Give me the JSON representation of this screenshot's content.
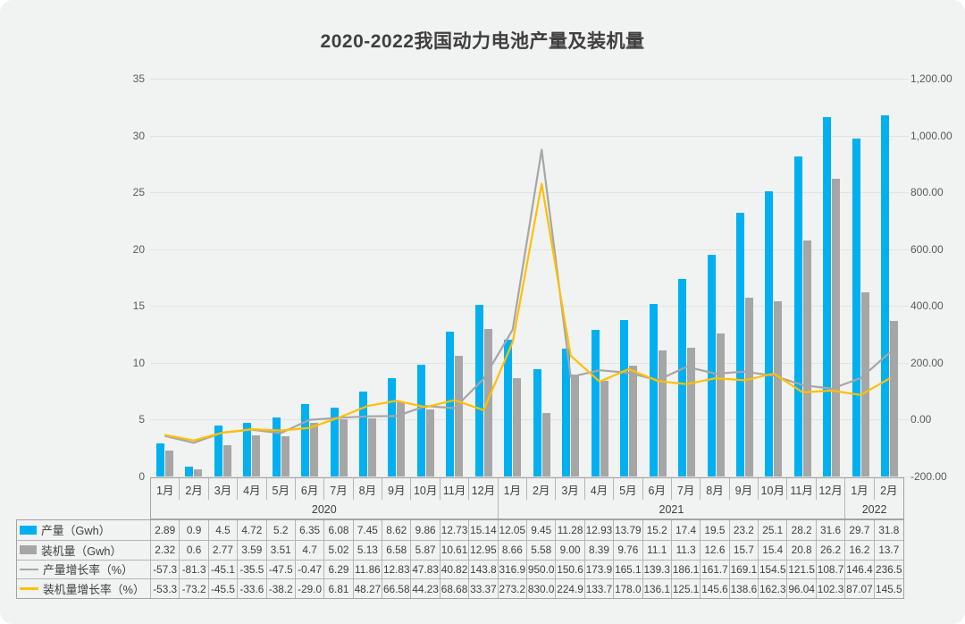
{
  "title": "2020-2022我国动力电池产量及装机量",
  "colors": {
    "production_bar": "#00b0f0",
    "install_bar": "#a6a6a6",
    "production_growth_line": "#a6a6a6",
    "install_growth_line": "#ffc000",
    "background": "#f1f2f2",
    "gridline": "#e2e2e2"
  },
  "chart_data": {
    "type": "combo",
    "title": "2020-2022我国动力电池产量及装机量",
    "grid": true,
    "legend_position": "table-left",
    "categories": [
      "1月",
      "2月",
      "3月",
      "4月",
      "5月",
      "6月",
      "7月",
      "8月",
      "9月",
      "10月",
      "11月",
      "12月",
      "1月",
      "2月",
      "3月",
      "4月",
      "5月",
      "6月",
      "7月",
      "8月",
      "9月",
      "10月",
      "11月",
      "12月",
      "1月",
      "2月"
    ],
    "year_groups": [
      {
        "label": "2020",
        "span": 12
      },
      {
        "label": "2021",
        "span": 12
      },
      {
        "label": "2022",
        "span": 2
      }
    ],
    "left_axis": {
      "min": 0,
      "max": 35,
      "step": 5,
      "ticks": [
        "0",
        "5",
        "10",
        "15",
        "20",
        "25",
        "30",
        "35"
      ]
    },
    "right_axis": {
      "min": -200,
      "max": 1200,
      "step": 200,
      "ticks": [
        "-200.00",
        "0.00",
        "200.00",
        "400.00",
        "600.00",
        "800.00",
        "1,000.00",
        "1,200.00"
      ]
    },
    "series": [
      {
        "name": "产量（Gwh）",
        "type": "bar",
        "axis": "left",
        "color": "#00b0f0",
        "values": [
          "2.89",
          "0.9",
          "4.5",
          "4.72",
          "5.2",
          "6.35",
          "6.08",
          "7.45",
          "8.62",
          "9.86",
          "12.73",
          "15.14",
          "12.05",
          "9.45",
          "11.28",
          "12.93",
          "13.79",
          "15.2",
          "17.4",
          "19.5",
          "23.2",
          "25.1",
          "28.2",
          "31.6",
          "29.7",
          "31.8"
        ]
      },
      {
        "name": "装机量（Gwh）",
        "type": "bar",
        "axis": "left",
        "color": "#a6a6a6",
        "values": [
          "2.32",
          "0.6",
          "2.77",
          "3.59",
          "3.51",
          "4.7",
          "5.02",
          "5.13",
          "6.58",
          "5.87",
          "10.61",
          "12.95",
          "8.66",
          "5.58",
          "9.00",
          "8.39",
          "9.76",
          "11.1",
          "11.3",
          "12.6",
          "15.7",
          "15.4",
          "20.8",
          "26.2",
          "16.2",
          "13.7"
        ]
      },
      {
        "name": "产量增长率（%）",
        "type": "line",
        "axis": "right",
        "color": "#a6a6a6",
        "values": [
          "-57.3",
          "-81.3",
          "-45.1",
          "-35.5",
          "-47.5",
          "-0.47",
          "6.29",
          "11.86",
          "12.83",
          "47.83",
          "40.82",
          "143.8",
          "316.9",
          "950.0",
          "150.6",
          "173.9",
          "165.1",
          "139.3",
          "186.1",
          "161.7",
          "169.1",
          "154.5",
          "121.5",
          "108.7",
          "146.4",
          "236.5"
        ]
      },
      {
        "name": "装机量增长率（%）",
        "type": "line",
        "axis": "right",
        "color": "#ffc000",
        "values": [
          "-53.3",
          "-73.2",
          "-45.5",
          "-33.6",
          "-38.2",
          "-29.0",
          "6.81",
          "48.27",
          "66.58",
          "44.23",
          "68.68",
          "33.37",
          "273.2",
          "830.0",
          "224.9",
          "133.7",
          "178.0",
          "136.1",
          "125.1",
          "145.6",
          "138.6",
          "162.3",
          "96.04",
          "102.3",
          "87.07",
          "145.5"
        ]
      }
    ]
  }
}
